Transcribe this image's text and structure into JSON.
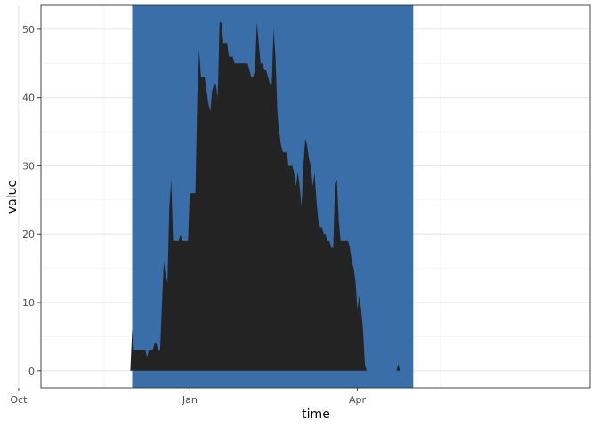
{
  "chart_data": {
    "type": "area",
    "title": "",
    "xlabel": "time",
    "ylabel": "value",
    "xlim": [
      -80,
      215
    ],
    "ylim": [
      -2.5,
      53.5
    ],
    "x_unit": "days since 1 Jan",
    "x_ticks": [
      {
        "label": "Oct",
        "value": -92
      },
      {
        "label": "Jan",
        "value": 0
      },
      {
        "label": "Apr",
        "value": 90
      }
    ],
    "y_ticks": [
      0,
      10,
      20,
      30,
      40,
      50
    ],
    "grid": true,
    "highlight_band": {
      "x_start": -31,
      "x_end": 120,
      "color": "#3a6ea8"
    },
    "series": [
      {
        "name": "",
        "color": "#232323",
        "points": [
          [
            -32,
            0
          ],
          [
            -31,
            6
          ],
          [
            -30,
            3
          ],
          [
            -28,
            3
          ],
          [
            -27,
            3
          ],
          [
            -26,
            3
          ],
          [
            -25,
            3
          ],
          [
            -24,
            3
          ],
          [
            -23,
            2
          ],
          [
            -22,
            3
          ],
          [
            -21,
            3
          ],
          [
            -20,
            3
          ],
          [
            -19,
            4
          ],
          [
            -18,
            4
          ],
          [
            -17,
            3
          ],
          [
            -16,
            3
          ],
          [
            -14,
            16
          ],
          [
            -13,
            14
          ],
          [
            -12,
            13
          ],
          [
            -11,
            24
          ],
          [
            -10,
            28
          ],
          [
            -9,
            19
          ],
          [
            -8,
            19
          ],
          [
            -7,
            19
          ],
          [
            -6,
            19
          ],
          [
            -5,
            20
          ],
          [
            -4,
            19
          ],
          [
            -3,
            19
          ],
          [
            -2,
            19
          ],
          [
            -1,
            19
          ],
          [
            0,
            26
          ],
          [
            1,
            26
          ],
          [
            2,
            26
          ],
          [
            3,
            26
          ],
          [
            4,
            40
          ],
          [
            5,
            47
          ],
          [
            6,
            43
          ],
          [
            7,
            43
          ],
          [
            8,
            43
          ],
          [
            9,
            41
          ],
          [
            10,
            39
          ],
          [
            11,
            38
          ],
          [
            12,
            41
          ],
          [
            13,
            42
          ],
          [
            14,
            42
          ],
          [
            15,
            40
          ],
          [
            16,
            51
          ],
          [
            17,
            51
          ],
          [
            18,
            48
          ],
          [
            19,
            48
          ],
          [
            20,
            48
          ],
          [
            21,
            46
          ],
          [
            22,
            46
          ],
          [
            23,
            46
          ],
          [
            24,
            45
          ],
          [
            25,
            45
          ],
          [
            26,
            45
          ],
          [
            27,
            45
          ],
          [
            28,
            45
          ],
          [
            29,
            45
          ],
          [
            30,
            45
          ],
          [
            31,
            45
          ],
          [
            32,
            44
          ],
          [
            33,
            43
          ],
          [
            34,
            43
          ],
          [
            35,
            44
          ],
          [
            36,
            51
          ],
          [
            37,
            48
          ],
          [
            38,
            45
          ],
          [
            39,
            45
          ],
          [
            40,
            44
          ],
          [
            41,
            44
          ],
          [
            42,
            43
          ],
          [
            43,
            42
          ],
          [
            44,
            42
          ],
          [
            45,
            50
          ],
          [
            46,
            46
          ],
          [
            47,
            38
          ],
          [
            48,
            35
          ],
          [
            49,
            33
          ],
          [
            50,
            32
          ],
          [
            51,
            32
          ],
          [
            52,
            32
          ],
          [
            53,
            30
          ],
          [
            54,
            30
          ],
          [
            55,
            30
          ],
          [
            56,
            29
          ],
          [
            57,
            27
          ],
          [
            58,
            29
          ],
          [
            59,
            27
          ],
          [
            60,
            24
          ],
          [
            61,
            30
          ],
          [
            62,
            34
          ],
          [
            63,
            33
          ],
          [
            64,
            31
          ],
          [
            65,
            30
          ],
          [
            66,
            27
          ],
          [
            67,
            29
          ],
          [
            68,
            25
          ],
          [
            69,
            22
          ],
          [
            70,
            21
          ],
          [
            71,
            21
          ],
          [
            72,
            20
          ],
          [
            73,
            20
          ],
          [
            74,
            19
          ],
          [
            75,
            19
          ],
          [
            76,
            18
          ],
          [
            77,
            18
          ],
          [
            78,
            27
          ],
          [
            79,
            28
          ],
          [
            80,
            22
          ],
          [
            81,
            19
          ],
          [
            82,
            19
          ],
          [
            83,
            19
          ],
          [
            84,
            19
          ],
          [
            85,
            19
          ],
          [
            86,
            18
          ],
          [
            87,
            16
          ],
          [
            88,
            15
          ],
          [
            89,
            13
          ],
          [
            90,
            9
          ],
          [
            91,
            11
          ],
          [
            92,
            9
          ],
          [
            93,
            6
          ],
          [
            94,
            1
          ],
          [
            95,
            0
          ],
          [
            111,
            0
          ],
          [
            112,
            1
          ],
          [
            113,
            0
          ]
        ]
      }
    ]
  }
}
